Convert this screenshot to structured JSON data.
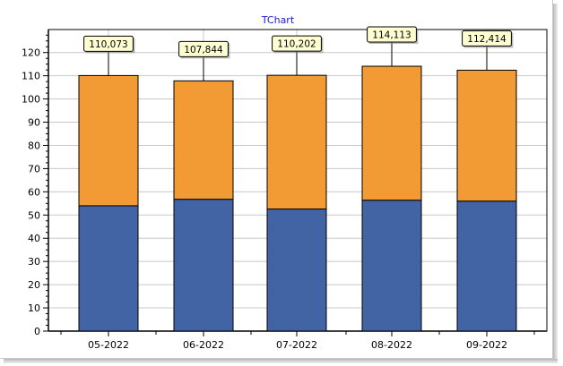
{
  "chart_data": {
    "type": "bar",
    "stacked": true,
    "title": "TChart",
    "categories": [
      "05-2022",
      "06-2022",
      "07-2022",
      "08-2022",
      "09-2022"
    ],
    "series": [
      {
        "values": [
          54,
          56.8,
          52.6,
          56.4,
          56
        ],
        "color": "#4264a4"
      },
      {
        "values": [
          56.1,
          51.0,
          57.6,
          57.7,
          56.4
        ],
        "color": "#f29a34"
      }
    ],
    "marks": [
      "110,073",
      "107,844",
      "110,202",
      "114,113",
      "112,414"
    ],
    "ylim": [
      0,
      130
    ],
    "yticks": [
      0,
      10,
      20,
      30,
      40,
      50,
      60,
      70,
      80,
      90,
      100,
      110,
      120
    ],
    "grid": true,
    "mark_color": "#ffffd2"
  }
}
